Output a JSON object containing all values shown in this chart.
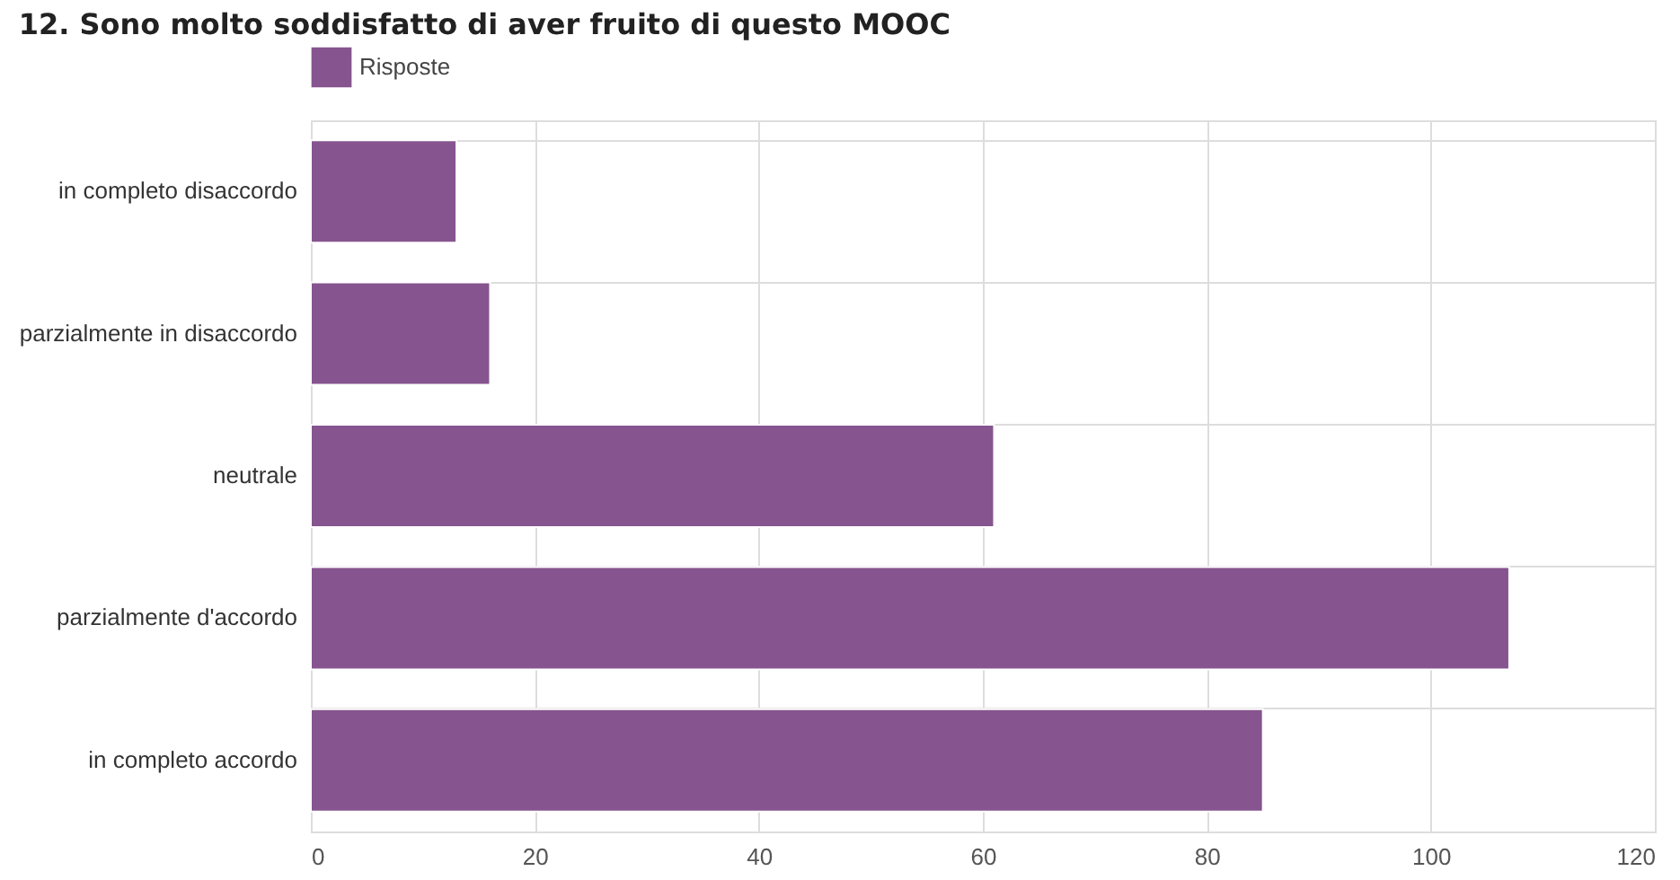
{
  "chart_data": {
    "type": "bar",
    "orientation": "horizontal",
    "title": "12. Sono molto soddisfatto di aver fruito di questo MOOC",
    "categories": [
      "in completo disaccordo",
      "parzialmente in disaccordo",
      "neutrale",
      "parzialmente d'accordo",
      "in completo accordo"
    ],
    "series": [
      {
        "name": "Risposte",
        "color": "#86548f",
        "values": [
          13,
          16,
          61,
          107,
          85
        ]
      }
    ],
    "xlim": [
      0,
      120
    ],
    "xticks": [
      0,
      20,
      40,
      60,
      80,
      100,
      120
    ],
    "grid": true,
    "legend": "top"
  }
}
